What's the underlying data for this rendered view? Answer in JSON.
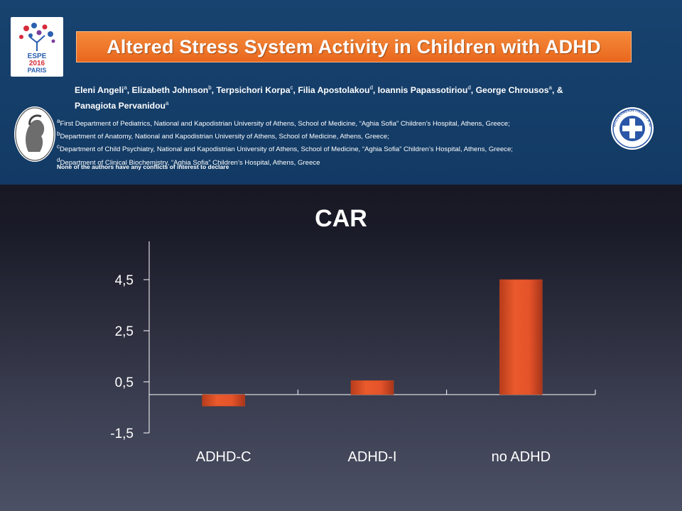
{
  "header": {
    "title": "Altered Stress System Activity in Children with ADHD",
    "authors": [
      {
        "name": "Eleni Angeli",
        "sup": "a"
      },
      {
        "name": "Elizabeth Johnson",
        "sup": "b"
      },
      {
        "name": "Terpsichori Korpa",
        "sup": "c"
      },
      {
        "name": "Filia Apostolakou",
        "sup": "d"
      },
      {
        "name": "Ioannis Papassotiriou",
        "sup": "d"
      },
      {
        "name": "George Chrousos",
        "sup": "a"
      },
      {
        "name": "Panagiota Pervanidou",
        "sup": "a"
      }
    ],
    "authors_joiner": "&",
    "affiliations": [
      {
        "sup": "a",
        "text": "First Department of Pediatrics, National and Kapodistrian University of Athens, School of Medicine, “Aghia Sofia” Children’s Hospital, Athens, Greece;"
      },
      {
        "sup": "b",
        "text": "Department of Anatomy, National and Kapodistrian University of Athens, School of Medicine, Athens, Greece;"
      },
      {
        "sup": "c",
        "text": "Department of Child Psychiatry, National and Kapodistrian University of Athens, School of Medicine, “Aghia Sofia” Children’s Hospital, Athens, Greece;"
      },
      {
        "sup": "d",
        "text": "Department of Clinical Biochemistry, “Aghia Sofia” Children’s Hospital, Athens, Greece"
      }
    ],
    "disclaimer": "None of the authors have any conflicts of interest to declare",
    "logo_left_text": [
      "ESPE",
      "2016",
      "PARIS"
    ],
    "seal_right_text": "ΝΟΣΟΚΟΜΕΙΟΝ ΠΑΙΔΩΝ Η ΑΓΙΑ ΣΟΦΙΑ"
  },
  "colors": {
    "header_bg": "#123a64",
    "title_orange": "#ee7226",
    "bar": "#e4532a",
    "axis": "#ffffff"
  },
  "chart_data": {
    "type": "bar",
    "title": "CAR",
    "categories": [
      "ADHD-C",
      "ADHD-I",
      "no ADHD"
    ],
    "values": [
      -0.45,
      0.55,
      4.5
    ],
    "yticks": [
      4.5,
      2.5,
      0.5,
      -1.5
    ],
    "ytick_labels": [
      "4,5",
      "2,5",
      "0,5",
      "-1,5"
    ],
    "ylim": [
      -1.5,
      6.0
    ],
    "xlabel": "",
    "ylabel": "",
    "grid": false
  }
}
